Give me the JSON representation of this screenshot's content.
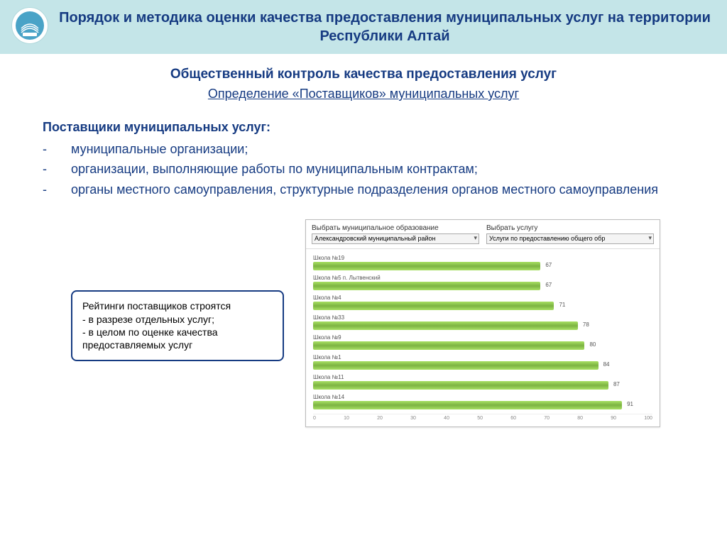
{
  "header": {
    "title": "Порядок и методика оценки качества предоставления муниципальных услуг на территории Республики Алтай"
  },
  "subtitle1": "Общественный контроль качества предоставления услуг",
  "subtitle2": "Определение «Поставщиков» муниципальных услуг",
  "section_label": "Поставщики муниципальных услуг:",
  "bullets": [
    "муниципальные организации;",
    "организации, выполняющие работы по муниципальным контрактам;",
    "органы местного самоуправления, структурные подразделения органов местного самоуправления"
  ],
  "note": {
    "title": "Рейтинги поставщиков строятся",
    "items": [
      "- в разрезе отдельных услуг;",
      "- в целом по оценке качества предоставляемых услуг"
    ]
  },
  "chart": {
    "type": "bar",
    "select1_label": "Выбрать муниципальное образование",
    "select1_value": "Александровский муниципальный район",
    "select2_label": "Выбрать услугу",
    "select2_value": "Услуги по предоставлению общего обр",
    "bar_color": "#7cb342",
    "xlim": [
      0,
      100
    ],
    "xtick_step": 10,
    "xticks": [
      "0",
      "10",
      "20",
      "30",
      "40",
      "50",
      "60",
      "70",
      "80",
      "90",
      "100"
    ],
    "bars": [
      {
        "label": "Школа №19",
        "value": 67
      },
      {
        "label": "Школа №5 п. Лытвенский",
        "value": 67
      },
      {
        "label": "Школа №4",
        "value": 71
      },
      {
        "label": "Школа №33",
        "value": 78
      },
      {
        "label": "Школа №9",
        "value": 80
      },
      {
        "label": "Школа №1",
        "value": 84
      },
      {
        "label": "Школа №11",
        "value": 87
      },
      {
        "label": "Школа №14",
        "value": 91
      }
    ]
  },
  "colors": {
    "header_bg": "#c4e5e8",
    "title_text": "#163b82",
    "bar_fill": "#7cb342"
  }
}
